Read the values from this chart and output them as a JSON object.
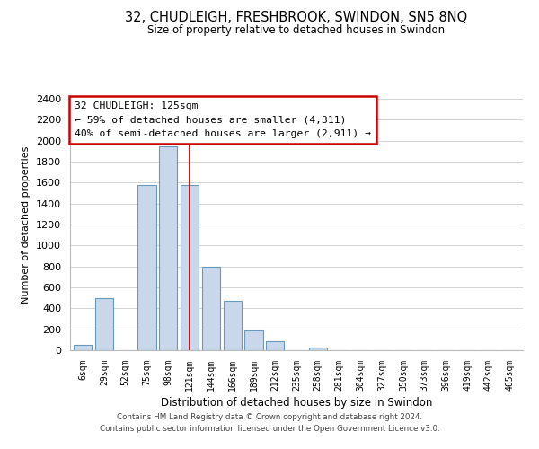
{
  "title": "32, CHUDLEIGH, FRESHBROOK, SWINDON, SN5 8NQ",
  "subtitle": "Size of property relative to detached houses in Swindon",
  "xlabel": "Distribution of detached houses by size in Swindon",
  "ylabel": "Number of detached properties",
  "categories": [
    "6sqm",
    "29sqm",
    "52sqm",
    "75sqm",
    "98sqm",
    "121sqm",
    "144sqm",
    "166sqm",
    "189sqm",
    "212sqm",
    "235sqm",
    "258sqm",
    "281sqm",
    "304sqm",
    "327sqm",
    "350sqm",
    "373sqm",
    "396sqm",
    "419sqm",
    "442sqm",
    "465sqm"
  ],
  "bar_values": [
    50,
    500,
    0,
    1580,
    1950,
    1580,
    800,
    470,
    190,
    90,
    0,
    30,
    0,
    0,
    0,
    0,
    0,
    0,
    0,
    0,
    0
  ],
  "bar_color": "#c8d8ea",
  "bar_edge_color": "#6699bb",
  "vline_x_idx": 5,
  "vline_color": "#cc0000",
  "ylim": [
    0,
    2400
  ],
  "yticks": [
    0,
    200,
    400,
    600,
    800,
    1000,
    1200,
    1400,
    1600,
    1800,
    2000,
    2200,
    2400
  ],
  "annotation_title": "32 CHUDLEIGH: 125sqm",
  "annotation_line1": "← 59% of detached houses are smaller (4,311)",
  "annotation_line2": "40% of semi-detached houses are larger (2,911) →",
  "annotation_box_color": "#ffffff",
  "annotation_box_edge": "#cc0000",
  "footer_line1": "Contains HM Land Registry data © Crown copyright and database right 2024.",
  "footer_line2": "Contains public sector information licensed under the Open Government Licence v3.0.",
  "bg_color": "#ffffff",
  "grid_color": "#cccccc"
}
